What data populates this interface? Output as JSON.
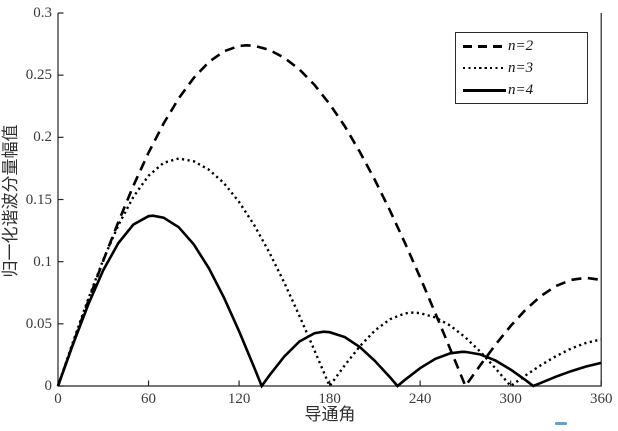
{
  "figure_title": "",
  "chart_data": {
    "type": "line",
    "title": "",
    "xlabel": "导通角",
    "ylabel": "归一化谐波分量幅值",
    "xlim": [
      0,
      360
    ],
    "ylim": [
      0,
      0.3
    ],
    "x_ticks": [
      0,
      60,
      120,
      180,
      240,
      300,
      360
    ],
    "x_tick_labels": [
      "0",
      "60",
      "120",
      "180",
      "240",
      "300",
      "360"
    ],
    "y_ticks": [
      0,
      0.05,
      0.1,
      0.15,
      0.2,
      0.25,
      0.3
    ],
    "y_tick_labels": [
      "0",
      "0.05",
      "0.1",
      "0.15",
      "0.2",
      "0.25",
      "0.3"
    ],
    "grid": false,
    "legend_position": "top-right",
    "line_color": "#000000",
    "axis_color": "#262626",
    "tick_label_color": "#3a3a3a",
    "series": [
      {
        "name": "n=2",
        "line_style": "dashed",
        "color": "#000000",
        "peaks": [
          {
            "x": 125,
            "y": 0.274
          },
          {
            "x": 350,
            "y": 0.087
          }
        ],
        "zeros": [
          0,
          270
        ],
        "points": [
          [
            0,
            0
          ],
          [
            10,
            0.0343
          ],
          [
            20,
            0.0681
          ],
          [
            30,
            0.1009
          ],
          [
            40,
            0.132
          ],
          [
            50,
            0.1611
          ],
          [
            60,
            0.1876
          ],
          [
            70,
            0.2111
          ],
          [
            80,
            0.2313
          ],
          [
            90,
            0.2479
          ],
          [
            100,
            0.2606
          ],
          [
            110,
            0.2692
          ],
          [
            120,
            0.2735
          ],
          [
            125,
            0.274
          ],
          [
            130,
            0.2736
          ],
          [
            140,
            0.2704
          ],
          [
            150,
            0.264
          ],
          [
            160,
            0.2546
          ],
          [
            170,
            0.2422
          ],
          [
            180,
            0.2268
          ],
          [
            190,
            0.209
          ],
          [
            200,
            0.1883
          ],
          [
            210,
            0.1657
          ],
          [
            220,
            0.1411
          ],
          [
            230,
            0.1149
          ],
          [
            240,
            0.0874
          ],
          [
            250,
            0.0588
          ],
          [
            260,
            0.0296
          ],
          [
            270,
            0
          ],
          [
            280,
            0.017
          ],
          [
            290,
            0.0333
          ],
          [
            300,
            0.0483
          ],
          [
            310,
            0.0615
          ],
          [
            320,
            0.0723
          ],
          [
            330,
            0.0804
          ],
          [
            340,
            0.0853
          ],
          [
            350,
            0.087
          ],
          [
            360,
            0.0853
          ]
        ]
      },
      {
        "name": "n=3",
        "line_style": "dotted",
        "color": "#000000",
        "peaks": [
          {
            "x": 80,
            "y": 0.183
          },
          {
            "x": 235,
            "y": 0.059
          }
        ],
        "zeros": [
          0,
          180,
          300
        ],
        "points": [
          [
            0,
            0
          ],
          [
            10,
            0.0357
          ],
          [
            20,
            0.07
          ],
          [
            30,
            0.1017
          ],
          [
            40,
            0.1294
          ],
          [
            50,
            0.1522
          ],
          [
            60,
            0.1691
          ],
          [
            70,
            0.1795
          ],
          [
            80,
            0.183
          ],
          [
            90,
            0.1807
          ],
          [
            100,
            0.174
          ],
          [
            110,
            0.1631
          ],
          [
            120,
            0.148
          ],
          [
            130,
            0.1294
          ],
          [
            140,
            0.1076
          ],
          [
            150,
            0.0831
          ],
          [
            160,
            0.0565
          ],
          [
            170,
            0.0286
          ],
          [
            180,
            0
          ],
          [
            190,
            0.0166
          ],
          [
            200,
            0.0319
          ],
          [
            210,
            0.0446
          ],
          [
            220,
            0.0537
          ],
          [
            230,
            0.0584
          ],
          [
            235,
            0.059
          ],
          [
            240,
            0.0586
          ],
          [
            250,
            0.0552
          ],
          [
            260,
            0.0486
          ],
          [
            270,
            0.0391
          ],
          [
            280,
            0.0274
          ],
          [
            290,
            0.0141
          ],
          [
            300,
            0
          ],
          [
            310,
            0.0086
          ],
          [
            320,
            0.0167
          ],
          [
            330,
            0.024
          ],
          [
            340,
            0.0301
          ],
          [
            350,
            0.0347
          ],
          [
            360,
            0.0375
          ]
        ]
      },
      {
        "name": "n=4",
        "line_style": "solid",
        "color": "#000000",
        "peaks": [
          {
            "x": 63,
            "y": 0.137
          },
          {
            "x": 176,
            "y": 0.0437
          },
          {
            "x": 268,
            "y": 0.0275
          }
        ],
        "zeros": [
          0,
          135,
          225,
          315
        ],
        "points": [
          [
            0,
            0
          ],
          [
            10,
            0.0338
          ],
          [
            20,
            0.0655
          ],
          [
            30,
            0.0932
          ],
          [
            40,
            0.115
          ],
          [
            50,
            0.1299
          ],
          [
            60,
            0.1366
          ],
          [
            63,
            0.137
          ],
          [
            70,
            0.1354
          ],
          [
            80,
            0.1277
          ],
          [
            90,
            0.1139
          ],
          [
            100,
            0.0947
          ],
          [
            110,
            0.071
          ],
          [
            120,
            0.044
          ],
          [
            130,
            0.0149
          ],
          [
            135,
            0
          ],
          [
            140,
            0.0083
          ],
          [
            150,
            0.0237
          ],
          [
            160,
            0.0358
          ],
          [
            170,
            0.0425
          ],
          [
            176,
            0.0437
          ],
          [
            180,
            0.0433
          ],
          [
            190,
            0.0394
          ],
          [
            200,
            0.0314
          ],
          [
            210,
            0.0202
          ],
          [
            220,
            0.007
          ],
          [
            225,
            0
          ],
          [
            230,
            0.005
          ],
          [
            240,
            0.0143
          ],
          [
            250,
            0.0218
          ],
          [
            260,
            0.0263
          ],
          [
            268,
            0.0275
          ],
          [
            270,
            0.0274
          ],
          [
            280,
            0.0253
          ],
          [
            290,
            0.0204
          ],
          [
            300,
            0.0132
          ],
          [
            310,
            0.0046
          ],
          [
            315,
            0
          ],
          [
            320,
            0.0025
          ],
          [
            330,
            0.0075
          ],
          [
            340,
            0.0119
          ],
          [
            350,
            0.0157
          ],
          [
            360,
            0.0186
          ]
        ]
      }
    ]
  },
  "artifact": {
    "color": "#6b9dc8"
  }
}
